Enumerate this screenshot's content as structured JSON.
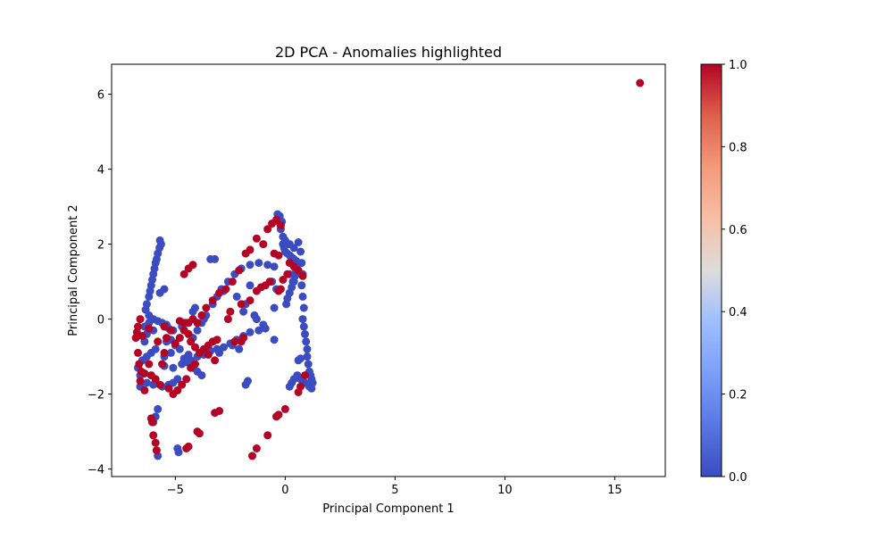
{
  "chart_data": {
    "type": "scatter",
    "title": "2D PCA - Anomalies highlighted",
    "xlabel": "Principal Component 1",
    "ylabel": "Principal Component 2",
    "xlim": [
      -7.9,
      17.3
    ],
    "ylim": [
      -4.2,
      6.8
    ],
    "xticks": [
      -5,
      0,
      5,
      10,
      15
    ],
    "yticks": [
      -4,
      -2,
      0,
      2,
      4,
      6
    ],
    "colormap": "coolwarm",
    "colorbar": {
      "range": [
        0,
        1
      ],
      "ticks": [
        0.0,
        0.2,
        0.4,
        0.6,
        0.8,
        1.0
      ],
      "tick_labels": [
        "0.0",
        "0.2",
        "0.4",
        "0.6",
        "0.8",
        "1.0"
      ]
    },
    "colors": {
      "normal": "#3b4cc0",
      "anomaly": "#b40426"
    },
    "grid": false,
    "series": [
      {
        "value": 0,
        "points": [
          [
            -5.7,
            2.1
          ],
          [
            -5.65,
            2.0
          ],
          [
            -5.72,
            1.9
          ],
          [
            -5.8,
            1.75
          ],
          [
            -5.85,
            1.6
          ],
          [
            -5.9,
            1.5
          ],
          [
            -5.95,
            1.35
          ],
          [
            -6.0,
            1.2
          ],
          [
            -6.05,
            1.05
          ],
          [
            -6.1,
            0.9
          ],
          [
            -6.15,
            0.75
          ],
          [
            -6.2,
            0.6
          ],
          [
            -6.3,
            0.4
          ],
          [
            -6.35,
            0.25
          ],
          [
            -5.5,
            0.8
          ],
          [
            -5.7,
            0.7
          ],
          [
            -6.0,
            0.0
          ],
          [
            -5.8,
            -0.05
          ],
          [
            -5.6,
            -0.1
          ],
          [
            -5.4,
            -0.15
          ],
          [
            -5.3,
            -0.25
          ],
          [
            -5.1,
            -0.3
          ],
          [
            -6.2,
            -0.1
          ],
          [
            -6.4,
            -0.2
          ],
          [
            -5.0,
            -0.7
          ],
          [
            -4.8,
            -0.8
          ],
          [
            -5.2,
            -0.9
          ],
          [
            -5.5,
            -1.0
          ],
          [
            -5.9,
            -0.8
          ],
          [
            -6.1,
            -0.9
          ],
          [
            -6.3,
            -1.0
          ],
          [
            -6.5,
            -1.1
          ],
          [
            -6.7,
            -1.3
          ],
          [
            -6.6,
            -1.5
          ],
          [
            -6.55,
            -1.7
          ],
          [
            -6.6,
            -1.8
          ],
          [
            -6.3,
            -1.7
          ],
          [
            -6.0,
            -1.75
          ],
          [
            -5.6,
            -1.8
          ],
          [
            -5.3,
            -1.75
          ],
          [
            -5.1,
            -1.7
          ],
          [
            -4.9,
            -1.6
          ],
          [
            -5.5,
            -1.25
          ],
          [
            -5.1,
            -1.3
          ],
          [
            -4.7,
            -1.2
          ],
          [
            -4.5,
            -1.15
          ],
          [
            -4.3,
            -1.1
          ],
          [
            -4.0,
            -1.0
          ],
          [
            -3.7,
            -0.95
          ],
          [
            -3.4,
            -0.85
          ],
          [
            -3.1,
            -0.8
          ],
          [
            -2.8,
            -0.75
          ],
          [
            -2.5,
            -0.65
          ],
          [
            -2.2,
            -0.55
          ],
          [
            -1.9,
            -0.45
          ],
          [
            -1.6,
            -0.35
          ],
          [
            -1.2,
            -0.3
          ],
          [
            -0.9,
            -0.25
          ],
          [
            -4.2,
            -0.5
          ],
          [
            -4.0,
            -0.3
          ],
          [
            -3.8,
            -0.1
          ],
          [
            -3.7,
            0.0
          ],
          [
            -3.6,
            0.1
          ],
          [
            -3.3,
            0.4
          ],
          [
            -3.1,
            0.6
          ],
          [
            -2.9,
            0.8
          ],
          [
            -2.6,
            1.0
          ],
          [
            -2.3,
            1.2
          ],
          [
            -2.0,
            1.35
          ],
          [
            -1.6,
            1.45
          ],
          [
            -1.2,
            1.5
          ],
          [
            -0.8,
            1.45
          ],
          [
            -0.5,
            1.4
          ],
          [
            -3.4,
            1.6
          ],
          [
            -3.2,
            1.6
          ],
          [
            -2.8,
            0.75
          ],
          [
            -2.2,
            0.6
          ],
          [
            -1.8,
            0.4
          ],
          [
            -1.4,
            0.1
          ],
          [
            -1.3,
            0.0
          ],
          [
            -1.0,
            -0.15
          ],
          [
            -0.5,
            -0.55
          ],
          [
            -1.8,
            -1.75
          ],
          [
            -1.7,
            -1.65
          ],
          [
            -5.8,
            -2.4
          ],
          [
            -5.9,
            -2.6
          ],
          [
            -6.0,
            -2.75
          ],
          [
            -5.8,
            -3.65
          ],
          [
            -4.9,
            -3.45
          ],
          [
            -4.85,
            -3.55
          ],
          [
            -4.2,
            0.2
          ],
          [
            -4.1,
            0.3
          ],
          [
            -0.1,
            2.0
          ],
          [
            -0.05,
            1.9
          ],
          [
            0.0,
            1.8
          ],
          [
            0.1,
            1.75
          ],
          [
            0.2,
            1.7
          ],
          [
            0.3,
            1.65
          ],
          [
            0.4,
            1.6
          ],
          [
            0.5,
            1.55
          ],
          [
            0.55,
            1.45
          ],
          [
            0.5,
            1.3
          ],
          [
            0.45,
            1.15
          ],
          [
            0.4,
            1.0
          ],
          [
            0.3,
            0.85
          ],
          [
            0.2,
            0.7
          ],
          [
            0.1,
            0.55
          ],
          [
            0.05,
            0.4
          ],
          [
            -0.15,
            2.6
          ],
          [
            -0.25,
            2.75
          ],
          [
            -0.35,
            2.8
          ],
          [
            -0.3,
            2.6
          ],
          [
            -0.2,
            2.4
          ],
          [
            -0.1,
            2.2
          ],
          [
            0.0,
            2.1
          ],
          [
            0.2,
            2.0
          ],
          [
            0.4,
            1.9
          ],
          [
            0.6,
            2.05
          ],
          [
            0.7,
            1.8
          ],
          [
            0.75,
            1.5
          ],
          [
            0.8,
            1.2
          ],
          [
            0.75,
            0.9
          ],
          [
            0.8,
            0.6
          ],
          [
            0.85,
            0.3
          ],
          [
            0.8,
            0.0
          ],
          [
            0.85,
            -0.2
          ],
          [
            0.9,
            -0.4
          ],
          [
            0.95,
            -0.6
          ],
          [
            1.0,
            -0.8
          ],
          [
            1.0,
            -1.0
          ],
          [
            1.05,
            -1.2
          ],
          [
            1.1,
            -1.4
          ],
          [
            1.15,
            -1.5
          ],
          [
            1.2,
            -1.6
          ],
          [
            1.25,
            -1.7
          ],
          [
            1.2,
            -1.85
          ],
          [
            1.1,
            -1.8
          ],
          [
            0.9,
            -1.7
          ],
          [
            0.7,
            -1.6
          ],
          [
            0.55,
            -1.5
          ],
          [
            0.6,
            -1.1
          ],
          [
            0.7,
            -1.05
          ],
          [
            0.4,
            -1.6
          ],
          [
            0.3,
            -1.7
          ],
          [
            0.2,
            -1.8
          ],
          [
            -0.4,
            0.8
          ],
          [
            -0.6,
            1.0
          ],
          [
            -0.5,
            0.3
          ],
          [
            0.2,
            1.2
          ],
          [
            0.35,
            1.0
          ],
          [
            -1.6,
            0.9
          ],
          [
            -1.9,
            0.2
          ],
          [
            -2.4,
            -0.7
          ],
          [
            -2.1,
            -0.8
          ],
          [
            -3.0,
            -0.9
          ],
          [
            -4.6,
            -1.05
          ],
          [
            -4.4,
            -0.95
          ],
          [
            -4.2,
            -1.3
          ],
          [
            -4.0,
            -1.4
          ],
          [
            -3.8,
            -1.5
          ],
          [
            -5.4,
            -0.6
          ],
          [
            -5.2,
            -0.55
          ],
          [
            -4.7,
            -0.2
          ],
          [
            -4.5,
            -0.1
          ],
          [
            -6.4,
            -0.6
          ],
          [
            -6.3,
            -0.4
          ],
          [
            -6.2,
            0.1
          ],
          [
            -6.0,
            -0.3
          ]
        ]
      },
      {
        "value": 1,
        "points": [
          [
            16.15,
            6.3
          ],
          [
            -6.6,
            0.0
          ],
          [
            -6.7,
            -0.2
          ],
          [
            -6.75,
            -0.35
          ],
          [
            -6.8,
            -0.5
          ],
          [
            -6.7,
            -0.9
          ],
          [
            -6.65,
            -1.2
          ],
          [
            -6.55,
            -1.4
          ],
          [
            -6.4,
            -1.45
          ],
          [
            -6.2,
            -1.2
          ],
          [
            -6.1,
            -1.5
          ],
          [
            -5.9,
            -1.6
          ],
          [
            -5.7,
            -1.75
          ],
          [
            -5.6,
            -1.2
          ],
          [
            -5.5,
            -0.9
          ],
          [
            -5.4,
            -0.5
          ],
          [
            -5.2,
            -0.3
          ],
          [
            -5.0,
            -0.65
          ],
          [
            -4.8,
            -0.5
          ],
          [
            -4.6,
            -0.3
          ],
          [
            -4.4,
            -0.1
          ],
          [
            -4.2,
            0.0
          ],
          [
            -4.0,
            -0.1
          ],
          [
            -3.8,
            0.1
          ],
          [
            -3.6,
            0.3
          ],
          [
            -3.3,
            0.5
          ],
          [
            -3.0,
            0.7
          ],
          [
            -2.7,
            0.8
          ],
          [
            -2.4,
            1.0
          ],
          [
            -2.1,
            1.3
          ],
          [
            -1.8,
            1.75
          ],
          [
            -1.6,
            1.85
          ],
          [
            -1.3,
            2.15
          ],
          [
            -1.0,
            2.0
          ],
          [
            -0.8,
            2.4
          ],
          [
            -0.6,
            2.55
          ],
          [
            -0.4,
            2.65
          ],
          [
            -0.2,
            2.5
          ],
          [
            -0.5,
            1.75
          ],
          [
            -0.3,
            1.7
          ],
          [
            -0.7,
            1.0
          ],
          [
            -0.9,
            0.9
          ],
          [
            -1.1,
            0.85
          ],
          [
            -1.3,
            0.75
          ],
          [
            -1.6,
            0.5
          ],
          [
            -2.0,
            0.4
          ],
          [
            -2.5,
            0.2
          ],
          [
            -2.6,
            0.0
          ],
          [
            -4.6,
            1.2
          ],
          [
            -4.4,
            1.35
          ],
          [
            -4.2,
            1.45
          ],
          [
            -4.8,
            -0.05
          ],
          [
            -4.6,
            -0.1
          ],
          [
            -4.4,
            -0.4
          ],
          [
            -4.3,
            -0.6
          ],
          [
            -4.1,
            -0.75
          ],
          [
            -3.9,
            -0.9
          ],
          [
            -3.7,
            -0.8
          ],
          [
            -3.5,
            -0.7
          ],
          [
            -3.3,
            -0.6
          ],
          [
            -3.1,
            -0.55
          ],
          [
            -4.3,
            -1.3
          ],
          [
            -4.1,
            -1.2
          ],
          [
            -4.5,
            -1.6
          ],
          [
            -4.7,
            -1.75
          ],
          [
            -4.9,
            -1.9
          ],
          [
            -5.1,
            -2.0
          ],
          [
            -5.3,
            -1.85
          ],
          [
            -6.1,
            -2.65
          ],
          [
            -6.05,
            -2.75
          ],
          [
            -6.0,
            -3.1
          ],
          [
            -5.9,
            -3.3
          ],
          [
            -5.85,
            -3.5
          ],
          [
            -4.4,
            -3.4
          ],
          [
            -4.5,
            -3.45
          ],
          [
            -4.0,
            -3.0
          ],
          [
            -3.9,
            -3.05
          ],
          [
            -3.2,
            -2.5
          ],
          [
            -3.0,
            -2.45
          ],
          [
            -1.5,
            -3.65
          ],
          [
            -1.3,
            -3.45
          ],
          [
            -0.8,
            -3.1
          ],
          [
            -0.4,
            -2.6
          ],
          [
            -0.3,
            -2.55
          ],
          [
            0.0,
            -2.4
          ],
          [
            0.6,
            -1.95
          ],
          [
            0.7,
            -1.8
          ],
          [
            0.9,
            -1.5
          ],
          [
            0.6,
            1.3
          ],
          [
            0.8,
            1.15
          ],
          [
            0.4,
            1.4
          ],
          [
            0.2,
            1.5
          ],
          [
            0.1,
            1.2
          ],
          [
            -0.1,
            1.05
          ],
          [
            -0.3,
            0.75
          ],
          [
            -0.2,
            0.8
          ],
          [
            -6.6,
            -1.65
          ],
          [
            -6.4,
            -1.9
          ],
          [
            -6.2,
            -0.25
          ],
          [
            -6.5,
            -0.45
          ],
          [
            -5.8,
            -0.6
          ],
          [
            -5.5,
            -0.2
          ],
          [
            -3.5,
            -0.95
          ],
          [
            -3.2,
            -1.1
          ],
          [
            -2.0,
            -0.6
          ],
          [
            -2.3,
            -0.6
          ],
          [
            -1.9,
            -0.5
          ]
        ]
      }
    ]
  }
}
